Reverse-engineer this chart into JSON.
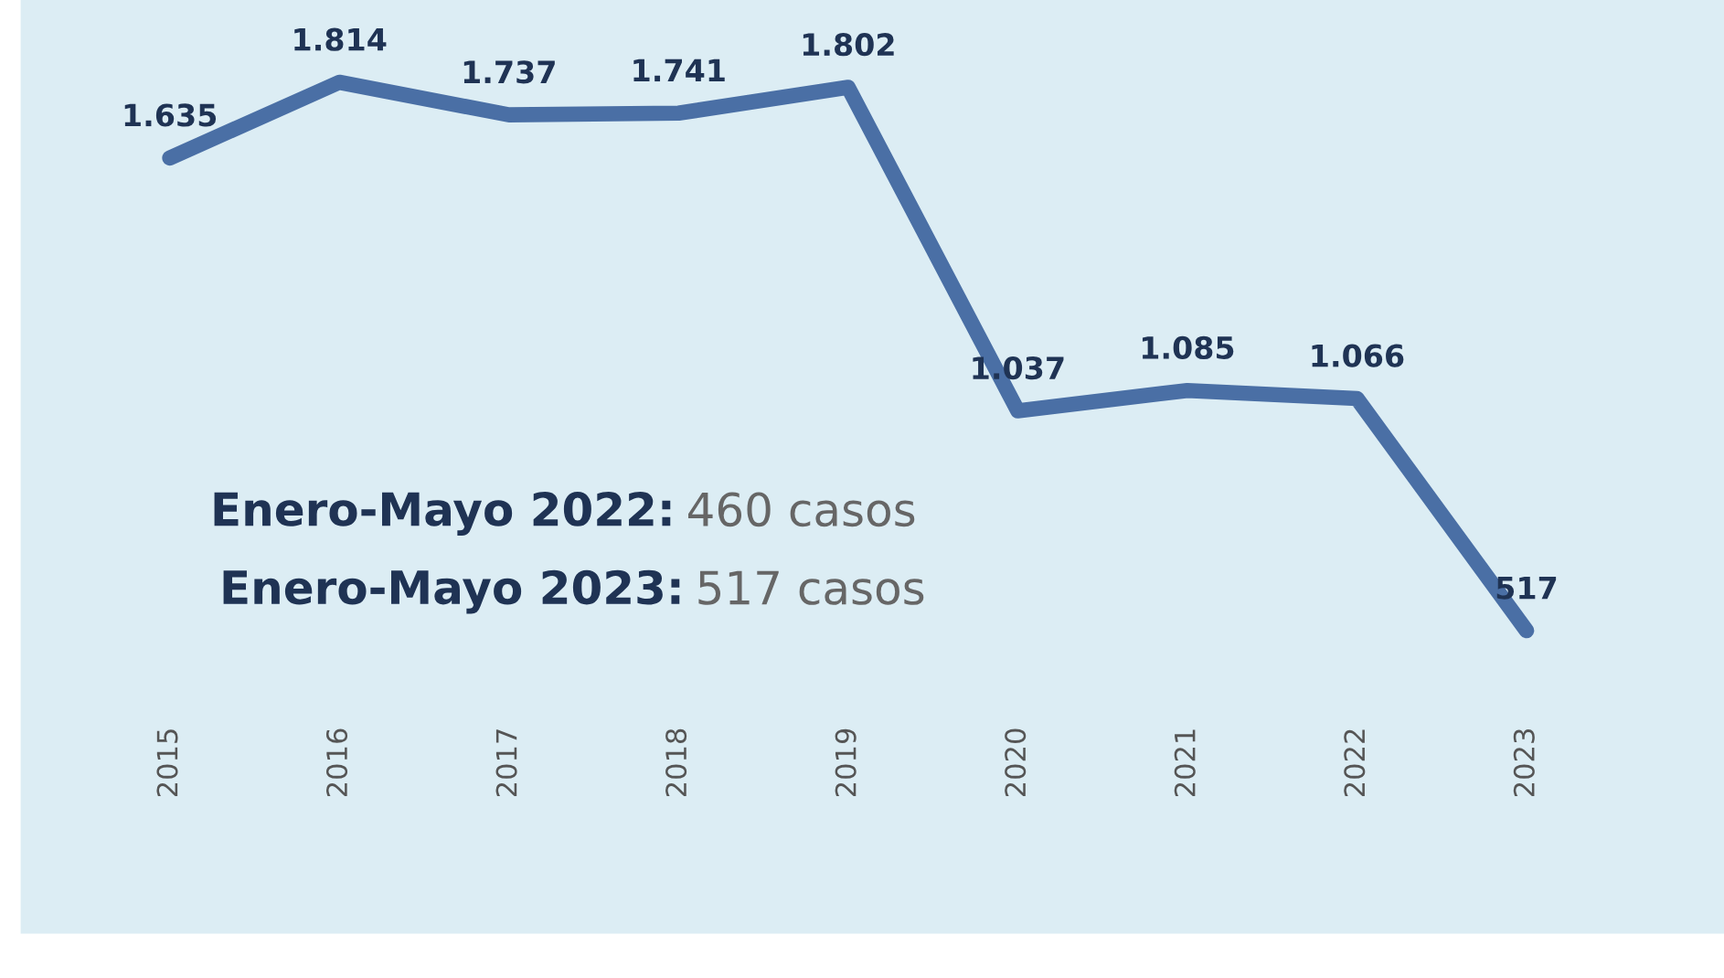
{
  "chart_data": {
    "type": "line",
    "categories": [
      "2015",
      "2016",
      "2017",
      "2018",
      "2019",
      "2020",
      "2021",
      "2022",
      "2023"
    ],
    "series": [
      {
        "color": "#4a6fa5",
        "values": [
          1635,
          1814,
          1737,
          1741,
          1802,
          1037,
          1085,
          1066,
          517
        ],
        "value_labels": [
          "1.635",
          "1.814",
          "1.737",
          "1.741",
          "1.802",
          "1.037",
          "1.085",
          "1.066",
          "517"
        ]
      }
    ],
    "annotations": [
      "Enero-Mayo 2022: 460 casos",
      "Enero-Mayo 2023: 517 casos"
    ],
    "marker": "none",
    "line_style": "solid",
    "grid": false,
    "legend": false,
    "tick_labels": "x"
  }
}
